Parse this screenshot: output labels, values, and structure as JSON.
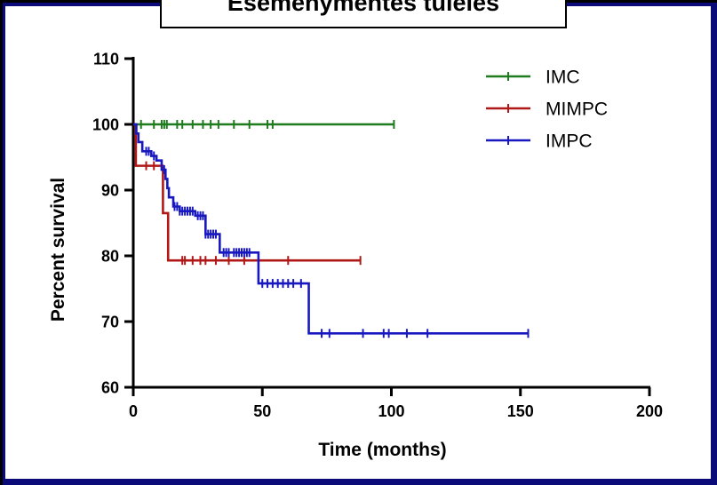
{
  "chart_data": {
    "type": "line",
    "title": "Esemenymentes tuleles",
    "xlabel": "Time (months)",
    "ylabel": "Percent survival",
    "xlim": [
      0,
      200
    ],
    "ylim": [
      60,
      110
    ],
    "x_ticks": [
      0,
      50,
      100,
      150,
      200
    ],
    "y_ticks": [
      60,
      70,
      80,
      90,
      100,
      110
    ],
    "grid": false,
    "legend_position": "top-right",
    "series": [
      {
        "name": "IMC",
        "color": "#1e7b1e",
        "steps": [
          [
            0,
            100
          ],
          [
            101,
            100
          ]
        ],
        "censored": [
          3,
          8,
          11,
          12,
          13,
          17,
          19,
          23,
          27,
          30,
          33,
          39,
          45,
          52,
          54,
          101
        ]
      },
      {
        "name": "MIMPC",
        "color": "#b01818",
        "steps": [
          [
            0,
            100
          ],
          [
            1,
            93.7
          ],
          [
            11.5,
            93.7
          ],
          [
            11.5,
            86.5
          ],
          [
            13.5,
            86.5
          ],
          [
            13.5,
            79.3
          ],
          [
            88,
            79.3
          ]
        ],
        "censored": [
          5,
          8,
          19,
          20,
          23,
          26,
          28,
          32,
          37,
          43,
          60,
          88
        ]
      },
      {
        "name": "IMPC",
        "color": "#1818c0",
        "steps": [
          [
            0,
            100
          ],
          [
            1.2,
            98.6
          ],
          [
            2,
            97.3
          ],
          [
            3.5,
            95.9
          ],
          [
            7,
            95.2
          ],
          [
            9,
            94.5
          ],
          [
            11,
            93.1
          ],
          [
            12.5,
            91.7
          ],
          [
            13.2,
            90.3
          ],
          [
            13.8,
            88.9
          ],
          [
            15.5,
            87.5
          ],
          [
            18,
            86.8
          ],
          [
            24,
            86.1
          ],
          [
            27.5,
            86.1
          ],
          [
            28,
            83.3
          ],
          [
            33,
            83.3
          ],
          [
            33.5,
            80.5
          ],
          [
            48.5,
            80.5
          ],
          [
            48.5,
            75.8
          ],
          [
            68,
            75.8
          ],
          [
            68,
            68.2
          ],
          [
            153,
            68.2
          ]
        ],
        "censored": [
          5,
          6,
          8,
          12,
          16,
          17,
          18,
          19,
          20,
          21,
          22,
          23,
          25,
          26,
          27,
          28,
          29,
          30,
          31,
          32,
          35,
          36,
          37,
          39,
          40,
          41,
          42,
          43,
          44,
          45,
          50,
          52,
          54,
          56,
          58,
          60,
          62,
          65,
          73,
          76,
          89,
          97,
          99,
          106,
          114,
          153
        ]
      }
    ]
  }
}
